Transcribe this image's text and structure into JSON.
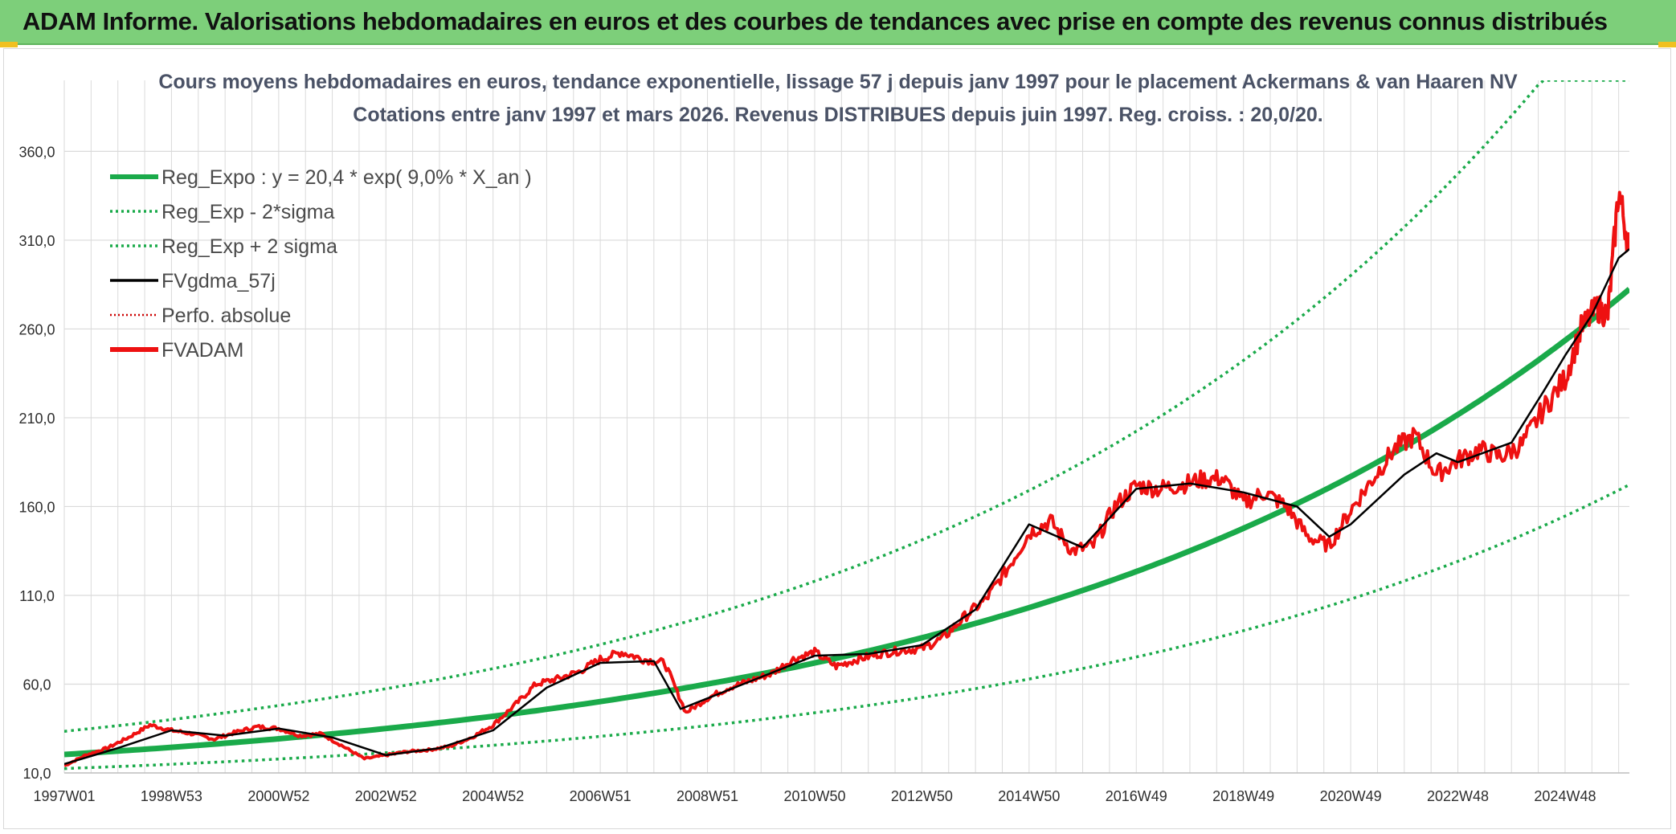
{
  "banner": {
    "title": "ADAM Informe. Valorisations hebdomadaires en euros et des courbes de tendances avec prise en compte des revenus connus distribués"
  },
  "colors": {
    "banner": "#7dcf7a",
    "trend": "#1aaa4a",
    "price": "#ee1111",
    "smooth": "#000000",
    "perf": "#cc0000",
    "grid": "#dadada"
  },
  "chart_data": {
    "type": "line",
    "title": "Cours moyens hebdomadaires en euros, tendance exponentielle, lissage 57 j depuis janv 1997 pour le placement Ackermans & van Haaren NV",
    "subtitle": "Cotations entre janv 1997 et mars 2026. Revenus DISTRIBUES depuis juin 1997. Reg. croiss. : 20,0/20.",
    "xlabel": "",
    "ylabel": "",
    "x_start": 1997.0,
    "x_end": 2026.2,
    "ylim": [
      10,
      400
    ],
    "yticks": [
      10,
      60,
      110,
      160,
      210,
      260,
      310,
      360
    ],
    "ytick_labels": [
      "10,0",
      "60,0",
      "110,0",
      "160,0",
      "210,0",
      "260,0",
      "310,0",
      "360,0"
    ],
    "xticks": [
      1997.0,
      1999.0,
      2001.0,
      2003.0,
      2005.0,
      2007.0,
      2009.0,
      2011.0,
      2013.0,
      2015.0,
      2017.0,
      2019.0,
      2021.0,
      2023.0,
      2025.0
    ],
    "xtick_labels": [
      "1997W01",
      "1998W53",
      "2000W52",
      "2002W52",
      "2004W52",
      "2006W51",
      "2008W51",
      "2010W50",
      "2012W50",
      "2014W50",
      "2016W49",
      "2018W49",
      "2020W49",
      "2022W48",
      "2024W48"
    ],
    "regression": {
      "a": 20.4,
      "rate": 0.09,
      "sigma2_minus_factor": 0.61,
      "sigma2_plus_factor": 1.64
    },
    "legend": [
      {
        "key": "reg",
        "label": "Reg_Expo : y = 20,4 * exp( 9,0% *  X_an )",
        "style": "solid-thick-green"
      },
      {
        "key": "lo",
        "label": "Reg_Exp - 2*sigma",
        "style": "dotted-green"
      },
      {
        "key": "hi",
        "label": "Reg_Exp + 2 sigma",
        "style": "dotted-green"
      },
      {
        "key": "sm",
        "label": "FVgdma_57j",
        "style": "solid-black"
      },
      {
        "key": "pf",
        "label": "Perfo. absolue",
        "style": "dotted-red"
      },
      {
        "key": "fv",
        "label": "FVADAM",
        "style": "solid-thick-red"
      }
    ],
    "series_price": {
      "name": "FVADAM",
      "x": [
        1997.0,
        1997.4,
        1997.8,
        1998.2,
        1998.6,
        1999.0,
        1999.4,
        1999.8,
        2000.2,
        2000.6,
        2001.0,
        2001.4,
        2001.8,
        2002.2,
        2002.6,
        2003.0,
        2003.4,
        2003.8,
        2004.2,
        2004.6,
        2005.0,
        2005.4,
        2005.8,
        2006.2,
        2006.6,
        2007.0,
        2007.4,
        2007.8,
        2008.2,
        2008.6,
        2009.0,
        2009.4,
        2009.8,
        2010.2,
        2010.6,
        2011.0,
        2011.4,
        2011.8,
        2012.2,
        2012.6,
        2013.0,
        2013.4,
        2013.8,
        2014.2,
        2014.6,
        2015.0,
        2015.4,
        2015.8,
        2016.2,
        2016.6,
        2017.0,
        2017.4,
        2017.8,
        2018.2,
        2018.6,
        2019.0,
        2019.4,
        2019.8,
        2020.2,
        2020.6,
        2021.0,
        2021.4,
        2021.8,
        2022.2,
        2022.6,
        2023.0,
        2023.4,
        2023.8,
        2024.2,
        2024.6,
        2025.0,
        2025.3,
        2025.6,
        2025.8,
        2026.0,
        2026.2
      ],
      "y": [
        14,
        20,
        24,
        30,
        37,
        34,
        32,
        29,
        33,
        36,
        35,
        31,
        32,
        25,
        18,
        20,
        22,
        23,
        25,
        30,
        37,
        48,
        60,
        63,
        67,
        74,
        78,
        74,
        72,
        44,
        52,
        58,
        62,
        66,
        74,
        78,
        70,
        74,
        77,
        79,
        80,
        86,
        98,
        108,
        125,
        145,
        152,
        135,
        138,
        160,
        172,
        170,
        172,
        175,
        176,
        162,
        168,
        160,
        143,
        138,
        158,
        175,
        192,
        200,
        178,
        186,
        192,
        188,
        195,
        215,
        232,
        260,
        272,
        268,
        338,
        305
      ]
    },
    "series_smooth": {
      "name": "FVgdma_57j",
      "x": [
        1997.0,
        1998.0,
        1999.0,
        2000.0,
        2001.0,
        2002.0,
        2003.0,
        2004.0,
        2005.0,
        2006.0,
        2007.0,
        2008.0,
        2008.5,
        2009.0,
        2010.0,
        2011.0,
        2012.0,
        2013.0,
        2014.0,
        2015.0,
        2016.0,
        2017.0,
        2018.0,
        2019.0,
        2020.0,
        2020.6,
        2021.0,
        2022.0,
        2022.6,
        2023.0,
        2024.0,
        2024.6,
        2025.0,
        2025.5,
        2026.0,
        2026.2
      ],
      "y": [
        15,
        24,
        34,
        31,
        35,
        30,
        20,
        24,
        34,
        58,
        72,
        73,
        46,
        52,
        64,
        76,
        77,
        82,
        102,
        150,
        137,
        170,
        173,
        168,
        160,
        143,
        150,
        178,
        190,
        185,
        196,
        225,
        245,
        268,
        300,
        305
      ]
    }
  }
}
